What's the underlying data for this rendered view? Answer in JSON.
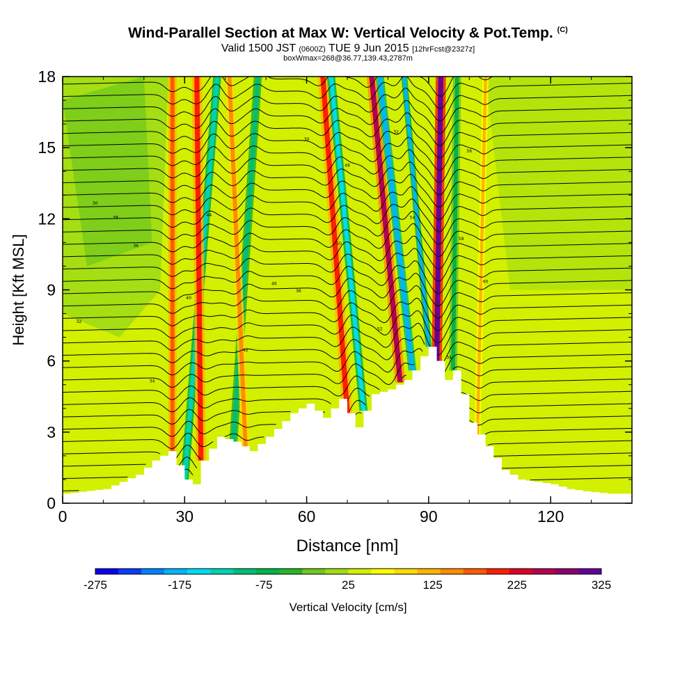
{
  "header": {
    "title_main": "Wind-Parallel Section at Max W: Vertical Velocity & Pot.Temp.",
    "title_copyright": "(C)",
    "valid_prefix": "Valid 1500 JST",
    "valid_utc": "(0600Z)",
    "valid_date": "TUE 9 Jun 2015",
    "forecast_info": "[12hrFcst@2327z]",
    "box_info": "boxWmax=268@36.77,139.43,2787m"
  },
  "colorbar": {
    "label": "Vertical Velocity [cm/s]",
    "tick_labels": [
      "-275",
      "-175",
      "-75",
      "25",
      "125",
      "225",
      "325"
    ],
    "colors": [
      "#0a00f0",
      "#0a3cf5",
      "#0080ff",
      "#00b4ff",
      "#00dcf0",
      "#00d2b4",
      "#00be78",
      "#00b446",
      "#28b428",
      "#6ec81e",
      "#a0dc14",
      "#d2f000",
      "#ffff00",
      "#ffdc00",
      "#ffb400",
      "#ff8c00",
      "#ff5a00",
      "#ff1e00",
      "#dc0028",
      "#b40050",
      "#8c006e",
      "#640096"
    ]
  },
  "chart_data": {
    "type": "heatmap",
    "title": "Wind-Parallel Section at Max W: Vertical Velocity & Pot.Temp.",
    "xlabel": "Distance [nm]",
    "ylabel": "Height [Kft MSL]",
    "xlim": [
      0,
      140
    ],
    "ylim": [
      0,
      18
    ],
    "x_ticks": [
      0,
      30,
      60,
      90,
      120
    ],
    "y_ticks": [
      0,
      3,
      6,
      9,
      12,
      15,
      18
    ],
    "color_range": [
      -275,
      325
    ],
    "color_step": 25,
    "terrain_height_kft": {
      "x": [
        0,
        10,
        18,
        22,
        26,
        30,
        32,
        34,
        38,
        42,
        46,
        50,
        56,
        60,
        64,
        68,
        72,
        76,
        80,
        84,
        86,
        88,
        90,
        92,
        94,
        96,
        98,
        100,
        104,
        108,
        112,
        116,
        120,
        124,
        128,
        134,
        140
      ],
      "y": [
        0.4,
        0.6,
        1.2,
        1.8,
        2.2,
        1.0,
        0.8,
        1.8,
        2.8,
        2.6,
        2.2,
        2.8,
        3.8,
        4.2,
        3.6,
        4.4,
        3.2,
        4.6,
        4.8,
        5.2,
        5.6,
        6.2,
        6.6,
        6.0,
        5.2,
        5.6,
        4.6,
        3.4,
        2.4,
        1.4,
        1.0,
        0.9,
        0.8,
        0.6,
        0.5,
        0.4,
        0.4
      ]
    },
    "velocity_bands_cm_s": [
      {
        "x_base": 27,
        "x_top": 27,
        "width": 2.0,
        "value": 140
      },
      {
        "x_base": 30,
        "x_top": 38,
        "width": 2.0,
        "value": -150
      },
      {
        "x_base": 34,
        "x_top": 33,
        "width": 2.5,
        "value": 150
      },
      {
        "x_base": 42,
        "x_top": 48,
        "width": 2.0,
        "value": -110
      },
      {
        "x_base": 45,
        "x_top": 41,
        "width": 2.0,
        "value": 100
      },
      {
        "x_base": 70,
        "x_top": 64,
        "width": 2.5,
        "value": 160
      },
      {
        "x_base": 74,
        "x_top": 66,
        "width": 2.0,
        "value": -170
      },
      {
        "x_base": 83,
        "x_top": 76,
        "width": 2.5,
        "value": 210
      },
      {
        "x_base": 86,
        "x_top": 78,
        "width": 2.0,
        "value": -200
      },
      {
        "x_base": 90,
        "x_top": 84,
        "width": 1.5,
        "value": -180
      },
      {
        "x_base": 92,
        "x_top": 93,
        "width": 2.5,
        "value": 300
      },
      {
        "x_base": 96,
        "x_top": 97,
        "width": 2.0,
        "value": -90
      },
      {
        "x_base": 102,
        "x_top": 104,
        "width": 1.5,
        "value": 80
      }
    ],
    "potential_temperature_contours_K": {
      "labels": [
        "30",
        "32",
        "34",
        "36",
        "38",
        "40",
        "42",
        "44",
        "46",
        "48",
        "50",
        "52",
        "54",
        "56",
        "58",
        "60"
      ]
    }
  }
}
